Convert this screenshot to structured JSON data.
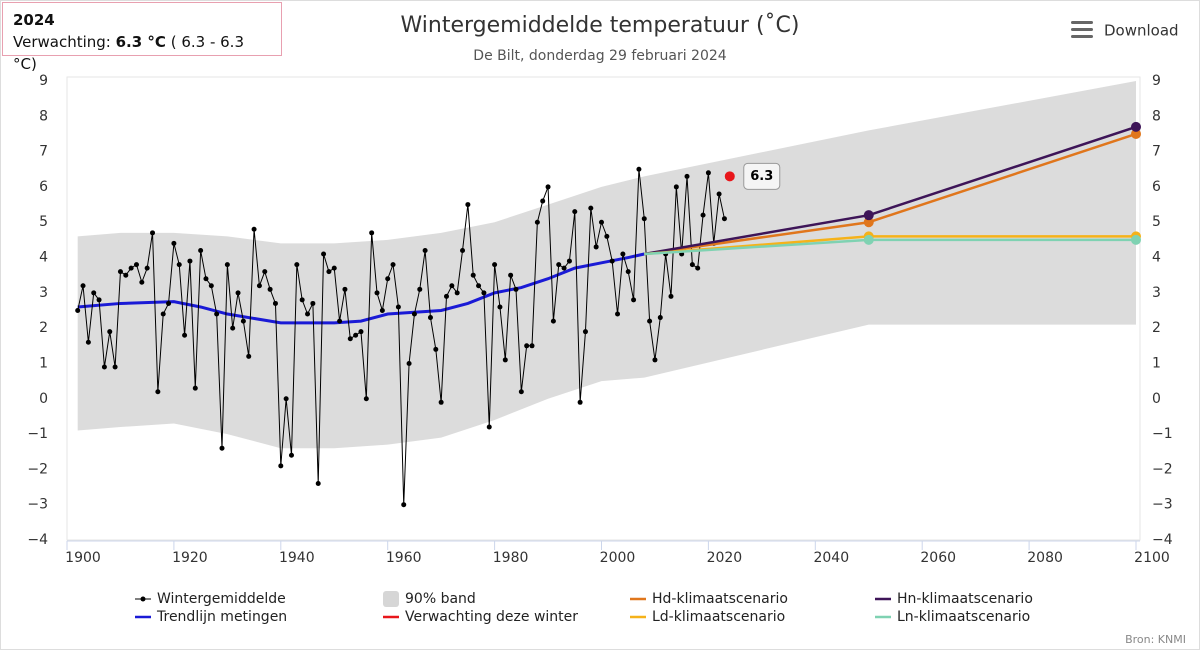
{
  "header": {
    "year": "2024",
    "label": "Verwachting:",
    "value": "6.3 °C",
    "range": "( 6.3 - 6.3 °C)"
  },
  "menu": {
    "label": "Download"
  },
  "source": "Bron: KNMI",
  "chart_data": {
    "type": "line",
    "title": "Wintergemiddelde temperatuur (˚C)",
    "subtitle": "De Bilt, donderdag 29 februari 2024",
    "xlim": [
      1900,
      2100
    ],
    "xticks": [
      1900,
      1920,
      1940,
      1960,
      1980,
      2000,
      2020,
      2040,
      2060,
      2080,
      2100
    ],
    "ylim": [
      -4,
      9
    ],
    "yticks": [
      {
        "value": -4,
        "label": "−4"
      },
      {
        "value": -3,
        "label": "−3"
      },
      {
        "value": -2,
        "label": "−2"
      },
      {
        "value": -1,
        "label": "−1"
      },
      0,
      1,
      2,
      3,
      4,
      5,
      6,
      7,
      8,
      9
    ],
    "series": [
      {
        "name": "Wintergemiddelde",
        "color": "#000000",
        "kind": "points",
        "x": [
          1902,
          1903,
          1904,
          1905,
          1906,
          1907,
          1908,
          1909,
          1910,
          1911,
          1912,
          1913,
          1914,
          1915,
          1916,
          1917,
          1918,
          1919,
          1920,
          1921,
          1922,
          1923,
          1924,
          1925,
          1926,
          1927,
          1928,
          1929,
          1930,
          1931,
          1932,
          1933,
          1934,
          1935,
          1936,
          1937,
          1938,
          1939,
          1940,
          1941,
          1942,
          1943,
          1944,
          1945,
          1946,
          1947,
          1948,
          1949,
          1950,
          1951,
          1952,
          1953,
          1954,
          1955,
          1956,
          1957,
          1958,
          1959,
          1960,
          1961,
          1962,
          1963,
          1964,
          1965,
          1966,
          1967,
          1968,
          1969,
          1970,
          1971,
          1972,
          1973,
          1974,
          1975,
          1976,
          1977,
          1978,
          1979,
          1980,
          1981,
          1982,
          1983,
          1984,
          1985,
          1986,
          1987,
          1988,
          1989,
          1990,
          1991,
          1992,
          1993,
          1994,
          1995,
          1996,
          1997,
          1998,
          1999,
          2000,
          2001,
          2002,
          2003,
          2004,
          2005,
          2006,
          2007,
          2008,
          2009,
          2010,
          2011,
          2012,
          2013,
          2014,
          2015,
          2016,
          2017,
          2018,
          2019,
          2020,
          2021,
          2022,
          2023
        ],
        "values": [
          2.5,
          3.2,
          1.6,
          3.0,
          2.8,
          0.9,
          1.9,
          0.9,
          3.6,
          3.5,
          3.7,
          3.8,
          3.3,
          3.7,
          4.7,
          0.2,
          2.4,
          2.7,
          4.4,
          3.8,
          1.8,
          3.9,
          0.3,
          4.2,
          3.4,
          3.2,
          2.4,
          -1.4,
          3.8,
          2.0,
          3.0,
          2.2,
          1.2,
          4.8,
          3.2,
          3.6,
          3.1,
          2.7,
          -1.9,
          0.0,
          -1.6,
          3.8,
          2.8,
          2.4,
          2.7,
          -2.4,
          4.1,
          3.6,
          3.7,
          2.2,
          3.1,
          1.7,
          1.8,
          1.9,
          0.0,
          4.7,
          3.0,
          2.5,
          3.4,
          3.8,
          2.6,
          -3.0,
          1.0,
          2.4,
          3.1,
          4.2,
          2.3,
          1.4,
          -0.1,
          2.9,
          3.2,
          3.0,
          4.2,
          5.5,
          3.5,
          3.2,
          3.0,
          -0.8,
          3.8,
          2.6,
          1.1,
          3.5,
          3.1,
          0.2,
          1.5,
          1.5,
          5.0,
          5.6,
          6.0,
          2.2,
          3.8,
          3.7,
          3.9,
          5.3,
          -0.1,
          1.9,
          5.4,
          4.3,
          5.0,
          4.6,
          3.9,
          2.4,
          4.1,
          3.6,
          2.8,
          6.5,
          5.1,
          2.2,
          1.1,
          2.3,
          4.1,
          2.9,
          6.0,
          4.1,
          6.3,
          3.8,
          3.7,
          5.2,
          6.4,
          4.4,
          5.8,
          5.1
        ]
      },
      {
        "name": "90% band",
        "color": "#d6d6d6",
        "kind": "band",
        "x": [
          1902,
          1910,
          1920,
          1930,
          1940,
          1950,
          1960,
          1970,
          1980,
          1990,
          2000,
          2008,
          2050,
          2100
        ],
        "upper": [
          4.6,
          4.7,
          4.7,
          4.6,
          4.4,
          4.4,
          4.5,
          4.7,
          5.0,
          5.5,
          6.0,
          6.3,
          7.6,
          9.0
        ],
        "lower": [
          -0.9,
          -0.8,
          -0.7,
          -1.0,
          -1.4,
          -1.4,
          -1.3,
          -1.1,
          -0.6,
          0.0,
          0.5,
          0.6,
          2.1,
          2.1
        ]
      },
      {
        "name": "Hd-klimaatscenario",
        "color": "#e0761c",
        "kind": "scenario",
        "x": [
          2008,
          2050,
          2100
        ],
        "values": [
          4.1,
          5.0,
          7.5
        ]
      },
      {
        "name": "Hn-klimaatscenario",
        "color": "#3e1558",
        "kind": "scenario",
        "x": [
          2008,
          2050,
          2100
        ],
        "values": [
          4.1,
          5.2,
          7.7
        ]
      },
      {
        "name": "Trendlijn metingen",
        "color": "#1a1ad6",
        "kind": "line",
        "x": [
          1902,
          1910,
          1920,
          1925,
          1930,
          1940,
          1950,
          1955,
          1960,
          1965,
          1970,
          1975,
          1980,
          1985,
          1990,
          1995,
          2000,
          2005,
          2008
        ],
        "values": [
          2.6,
          2.7,
          2.75,
          2.6,
          2.4,
          2.15,
          2.15,
          2.2,
          2.4,
          2.45,
          2.5,
          2.7,
          3.0,
          3.15,
          3.4,
          3.7,
          3.85,
          4.0,
          4.1
        ]
      },
      {
        "name": "Verwachting deze winter",
        "color": "#e8161b",
        "kind": "forecast",
        "x": [
          2024
        ],
        "values": [
          6.3
        ]
      },
      {
        "name": "Ld-klimaatscenario",
        "color": "#f5b21a",
        "kind": "scenario",
        "x": [
          2008,
          2050,
          2100
        ],
        "values": [
          4.1,
          4.6,
          4.6
        ]
      },
      {
        "name": "Ln-klimaatscenario",
        "color": "#7fd2b2",
        "kind": "scenario",
        "x": [
          2008,
          2050,
          2100
        ],
        "values": [
          4.1,
          4.5,
          4.5
        ]
      }
    ]
  }
}
